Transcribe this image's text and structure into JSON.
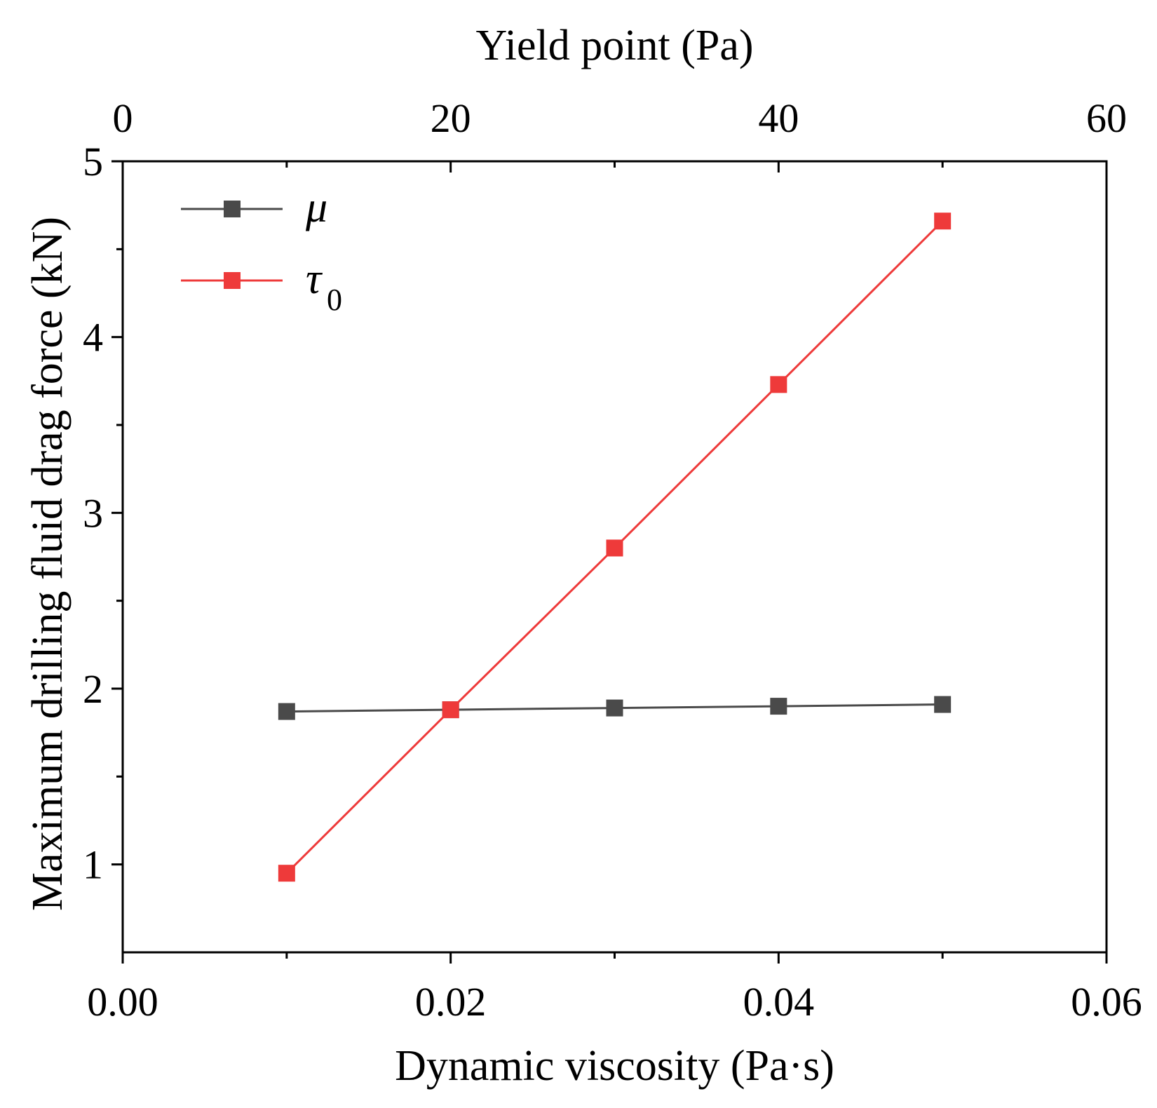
{
  "chart_data": {
    "type": "line",
    "top_axis": {
      "label": "Yield point (Pa)",
      "ticks": [
        0,
        20,
        40,
        60
      ],
      "tick_labels": [
        "0",
        "20",
        "40",
        "60"
      ],
      "range": [
        0,
        60
      ]
    },
    "bottom_axis": {
      "label": "Dynamic viscosity (Pa·s)",
      "ticks": [
        0.0,
        0.02,
        0.04,
        0.06
      ],
      "tick_labels": [
        "0.00",
        "0.02",
        "0.04",
        "0.06"
      ],
      "range": [
        0,
        0.06
      ]
    },
    "y_axis": {
      "label": "Maximum drilling fluid drag force (kN)",
      "ticks": [
        1,
        2,
        3,
        4,
        5
      ],
      "tick_labels": [
        "1",
        "2",
        "3",
        "4",
        "5"
      ],
      "range": [
        0.5,
        5
      ]
    },
    "grid": false,
    "legend_position": "top-left",
    "series": [
      {
        "name": "μ",
        "legend_symbol": "μ",
        "color": "#4a4a4a",
        "axis": "bottom",
        "x": [
          0.01,
          0.02,
          0.03,
          0.04,
          0.05
        ],
        "values": [
          1.87,
          1.88,
          1.89,
          1.9,
          1.91
        ]
      },
      {
        "name": "τ0",
        "legend_symbol": "τ",
        "legend_subscript": "0",
        "color": "#ee3a3a",
        "axis": "top",
        "x": [
          10,
          20,
          30,
          40,
          50
        ],
        "values": [
          0.95,
          1.88,
          2.8,
          3.73,
          4.66
        ]
      }
    ]
  }
}
